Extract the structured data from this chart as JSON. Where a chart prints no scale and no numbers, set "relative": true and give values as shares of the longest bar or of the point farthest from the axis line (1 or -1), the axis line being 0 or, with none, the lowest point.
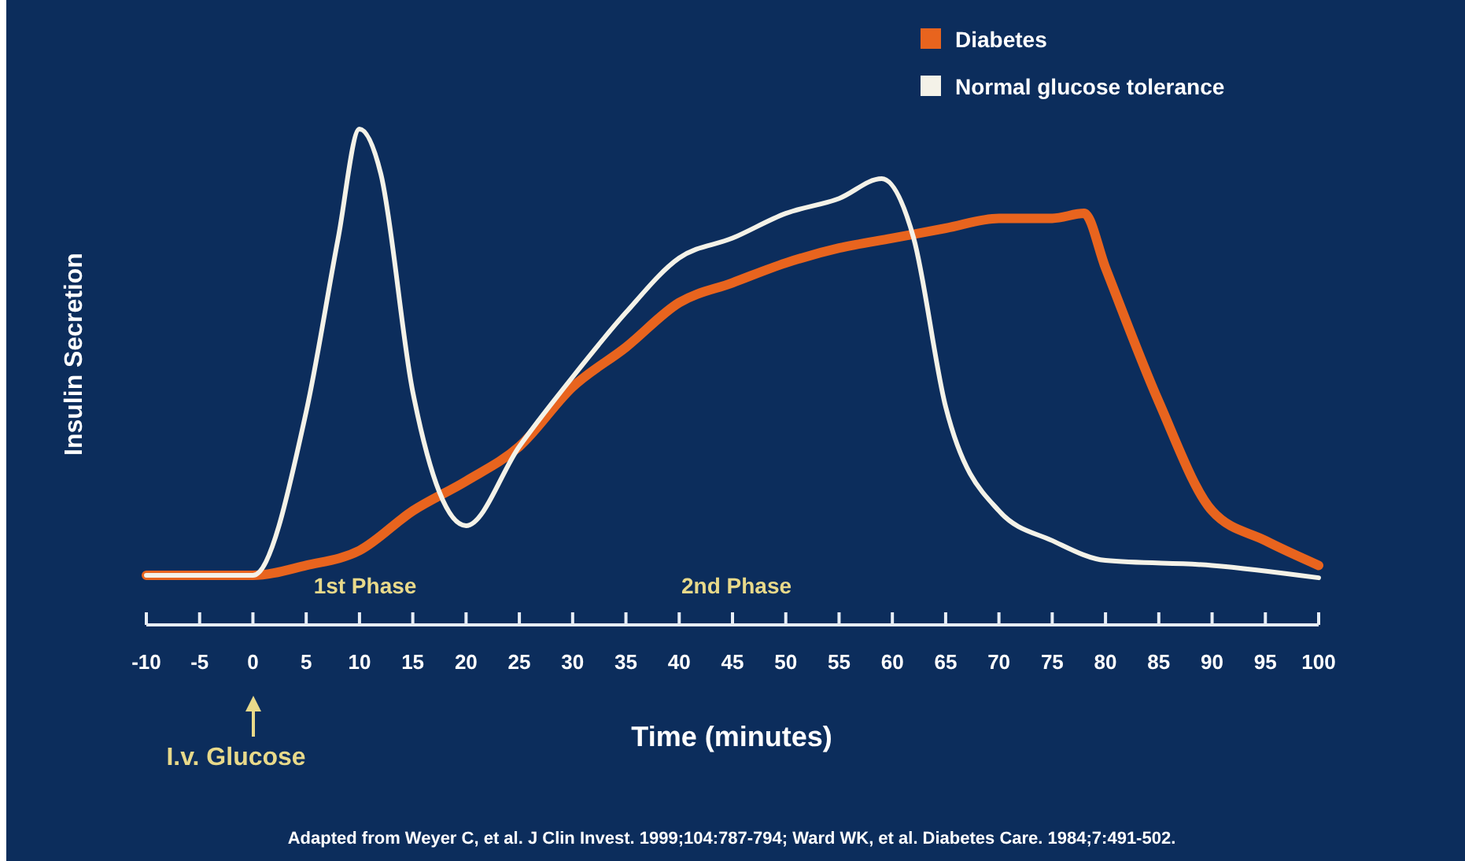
{
  "chart_data": {
    "type": "line",
    "relative": true,
    "xlabel": "Time (minutes)",
    "ylabel": "Insulin Secretion",
    "xlim": [
      -10,
      100
    ],
    "xticks": [
      -10,
      -5,
      0,
      5,
      10,
      15,
      20,
      25,
      30,
      35,
      40,
      45,
      50,
      55,
      60,
      65,
      70,
      75,
      80,
      85,
      90,
      95,
      100
    ],
    "legend": "top right",
    "series": [
      {
        "name": "Diabetes",
        "color": "#e8641e",
        "x": [
          -10,
          0,
          5,
          10,
          15,
          20,
          25,
          30,
          35,
          40,
          45,
          50,
          55,
          60,
          65,
          70,
          75,
          78,
          80,
          85,
          90,
          95,
          100
        ],
        "values": [
          0.1,
          0.1,
          0.12,
          0.15,
          0.23,
          0.29,
          0.36,
          0.48,
          0.56,
          0.65,
          0.69,
          0.73,
          0.76,
          0.78,
          0.8,
          0.82,
          0.82,
          0.83,
          0.72,
          0.45,
          0.23,
          0.17,
          0.12
        ]
      },
      {
        "name": "Normal glucose tolerance",
        "color": "#f4f2e8",
        "x": [
          -10,
          0,
          5,
          8,
          10,
          12,
          15,
          20,
          25,
          30,
          35,
          40,
          45,
          50,
          55,
          59,
          62,
          65,
          70,
          75,
          80,
          90,
          100
        ],
        "values": [
          0.1,
          0.1,
          0.43,
          0.78,
          1.0,
          0.91,
          0.47,
          0.2,
          0.36,
          0.5,
          0.63,
          0.74,
          0.78,
          0.83,
          0.86,
          0.9,
          0.78,
          0.44,
          0.23,
          0.17,
          0.13,
          0.12,
          0.095
        ]
      }
    ],
    "annotations": [
      "1st Phase",
      "2nd Phase",
      "I.v. Glucose",
      "Adapted from Weyer C, et al. J Clin Invest. 1999;104:787-794; Ward WK, et al. Diabetes Care. 1984;7:491-502."
    ]
  }
}
